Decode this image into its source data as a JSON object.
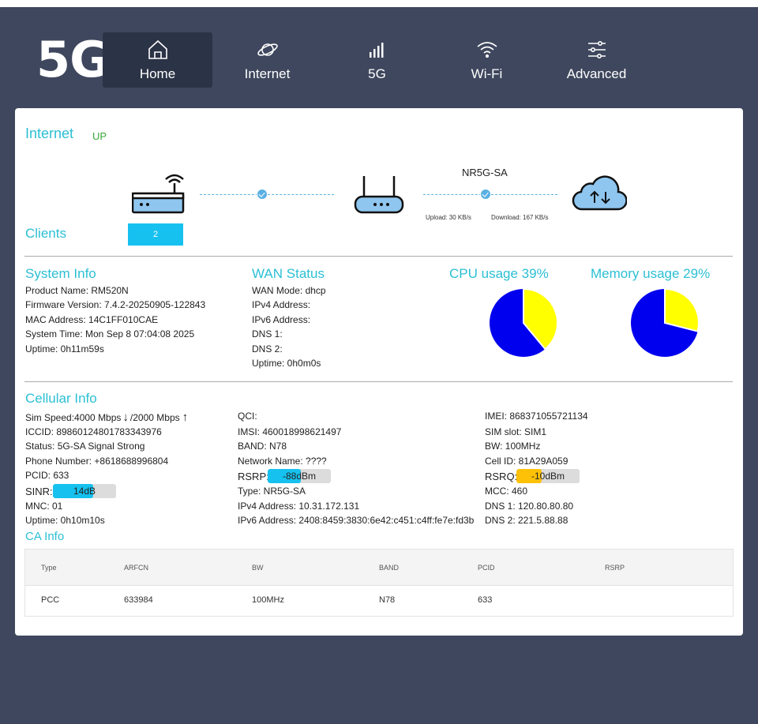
{
  "logo": "5G",
  "nav": [
    {
      "label": "Home",
      "icon": "home-icon",
      "active": true
    },
    {
      "label": "Internet",
      "icon": "planet-icon",
      "active": false
    },
    {
      "label": "5G",
      "icon": "signal-bars-icon",
      "active": false
    },
    {
      "label": "Wi-Fi",
      "icon": "wifi-icon",
      "active": false
    },
    {
      "label": "Advanced",
      "icon": "sliders-icon",
      "active": false
    }
  ],
  "internet": {
    "title": "Internet",
    "status": "UP",
    "clients_label": "Clients",
    "clients_count": "2",
    "network_type": "NR5G-SA",
    "upload": "Upload: 30 KB/s",
    "download": "Download: 167 KB/s"
  },
  "system_info": {
    "title": "System Info",
    "lines": [
      "Product Name: RM520N",
      "Firmware Version: 7.4.2-20250905-122843",
      "MAC Address: 14C1FF010CAE",
      "System Time: Mon Sep 8 07:04:08 2025",
      "Uptime: 0h11m59s"
    ]
  },
  "wan_status": {
    "title": "WAN Status",
    "lines": [
      "WAN Mode: dhcp",
      "IPv4 Address:",
      "IPv6 Address:",
      "DNS 1:",
      "DNS 2:",
      "Uptime: 0h0m0s"
    ]
  },
  "cpu": {
    "title": "CPU usage 39%",
    "percent": 39
  },
  "memory": {
    "title": "Memory usage 29%",
    "percent": 29
  },
  "colors": {
    "pie_used": "#ffff00",
    "pie_free": "#0000ee",
    "accent": "#2bbfd4",
    "rsrp_bar": "#16c1ef",
    "rsrq_bar": "#ffc107",
    "sinr_bar": "#16c1ef"
  },
  "cellular": {
    "title": "Cellular Info",
    "sim_speed_down": "Sim Speed:4000 Mbps",
    "sim_speed_up": "/2000 Mbps",
    "col1": [
      "ICCID: 89860124801783343976",
      "Status: 5G-SA Signal Strong",
      "Phone Number: +8618688996804",
      "PCID: 633"
    ],
    "sinr_label": "SINR:",
    "sinr_value": "14dB",
    "sinr_level": 0.64,
    "col1b": [
      "MNC: 01",
      "Uptime: 0h10m10s"
    ],
    "col2": [
      "QCI:",
      "IMSI: 460018998621497",
      "BAND: N78",
      "Network Name: ????"
    ],
    "rsrp_label": "RSRP:",
    "rsrp_value": "-88dBm",
    "rsrp_level": 0.53,
    "col2b": [
      "Type: NR5G-SA",
      "IPv4 Address: 10.31.172.131",
      "IPv6 Address: 2408:8459:3830:6e42:c451:c4ff:fe7e:fd3b"
    ],
    "col3": [
      "IMEI: 868371055721134",
      "SIM slot: SIM1",
      "BW: 100MHz",
      "Cell ID: 81A29A059"
    ],
    "rsrq_label": "RSRQ:",
    "rsrq_value": "-10dBm",
    "rsrq_level": 0.4,
    "col3b": [
      "MCC: 460",
      "DNS 1: 120.80.80.80",
      "DNS 2: 221.5.88.88"
    ]
  },
  "ca_info": {
    "title": "CA Info",
    "headers": [
      "Type",
      "ARFCN",
      "BW",
      "BAND",
      "PCID",
      "RSRP"
    ],
    "rows": [
      [
        "PCC",
        "633984",
        "100MHz",
        "N78",
        "633",
        ""
      ]
    ]
  }
}
